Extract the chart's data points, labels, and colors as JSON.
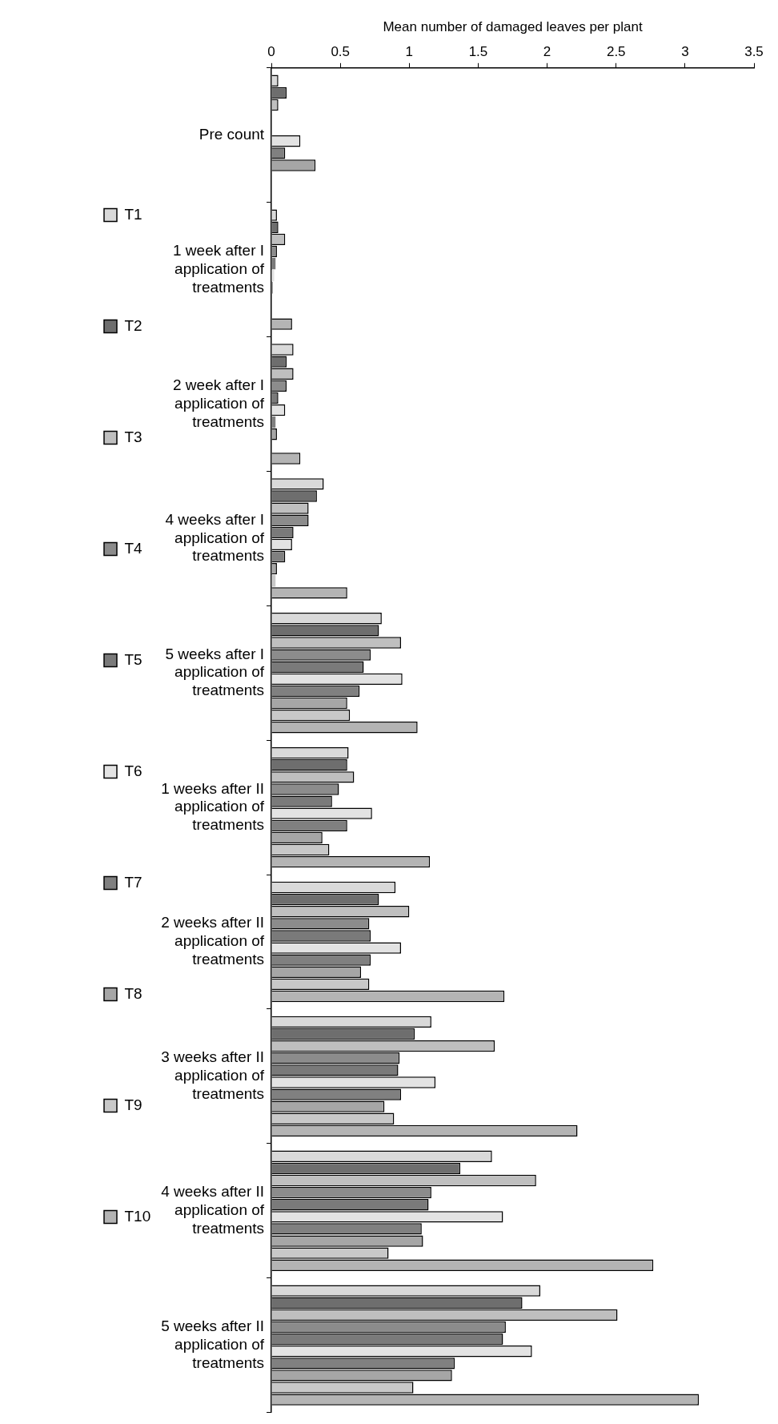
{
  "chart_data": {
    "type": "bar",
    "orientation": "horizontal",
    "xlabel": "Mean number of damaged leaves per plant",
    "categories": [
      "Pre count",
      "1 week after I application of treatments",
      "2 week after I application of treatments",
      "4 weeks after I application of treatments",
      "5 weeks after I application of treatments",
      "1 weeks after II application of treatments",
      "2 weeks after II application of treatments",
      "3 weeks after II application of treatments",
      "4 weeks after II application of treatments",
      "5 weeks after II application of treatments"
    ],
    "series": [
      {
        "name": "T1",
        "color": "#d9d9d9",
        "values": [
          0.05,
          0.04,
          0.16,
          0.38,
          0.8,
          0.56,
          0.9,
          1.16,
          1.6,
          1.95
        ]
      },
      {
        "name": "T2",
        "color": "#6e6e6e",
        "values": [
          0.11,
          0.05,
          0.11,
          0.33,
          0.78,
          0.55,
          0.78,
          1.04,
          1.37,
          1.82
        ]
      },
      {
        "name": "T3",
        "color": "#bfbfbf",
        "values": [
          0.05,
          0.1,
          0.16,
          0.27,
          0.94,
          0.6,
          1.0,
          1.62,
          1.92,
          2.51
        ]
      },
      {
        "name": "T4",
        "color": "#8c8c8c",
        "values": [
          0,
          0.04,
          0.11,
          0.27,
          0.72,
          0.49,
          0.71,
          0.93,
          1.16,
          1.7
        ]
      },
      {
        "name": "T5",
        "color": "#7a7a7a",
        "values": [
          0,
          0.03,
          0.05,
          0.16,
          0.67,
          0.44,
          0.72,
          0.92,
          1.14,
          1.68
        ]
      },
      {
        "name": "T6",
        "color": "#e3e3e3",
        "values": [
          0.21,
          0.02,
          0.1,
          0.15,
          0.95,
          0.73,
          0.94,
          1.19,
          1.68,
          1.89
        ]
      },
      {
        "name": "T7",
        "color": "#808080",
        "values": [
          0.1,
          0.01,
          0.03,
          0.1,
          0.64,
          0.55,
          0.72,
          0.94,
          1.09,
          1.33
        ]
      },
      {
        "name": "T8",
        "color": "#a6a6a6",
        "values": [
          0.32,
          0,
          0.04,
          0.04,
          0.55,
          0.37,
          0.65,
          0.82,
          1.1,
          1.31
        ]
      },
      {
        "name": "T9",
        "color": "#c8c8c8",
        "values": [
          0,
          0,
          0,
          0.03,
          0.57,
          0.42,
          0.71,
          0.89,
          0.85,
          1.03
        ]
      },
      {
        "name": "T10",
        "color": "#b4b4b4",
        "values": [
          0,
          0.15,
          0.21,
          0.55,
          1.06,
          1.15,
          1.69,
          2.22,
          2.77,
          3.1
        ]
      }
    ],
    "xlim": [
      0,
      3.5
    ],
    "xticks": [
      0,
      0.5,
      1,
      1.5,
      2,
      2.5,
      3,
      3.5
    ],
    "grid": false,
    "legend": "left"
  }
}
